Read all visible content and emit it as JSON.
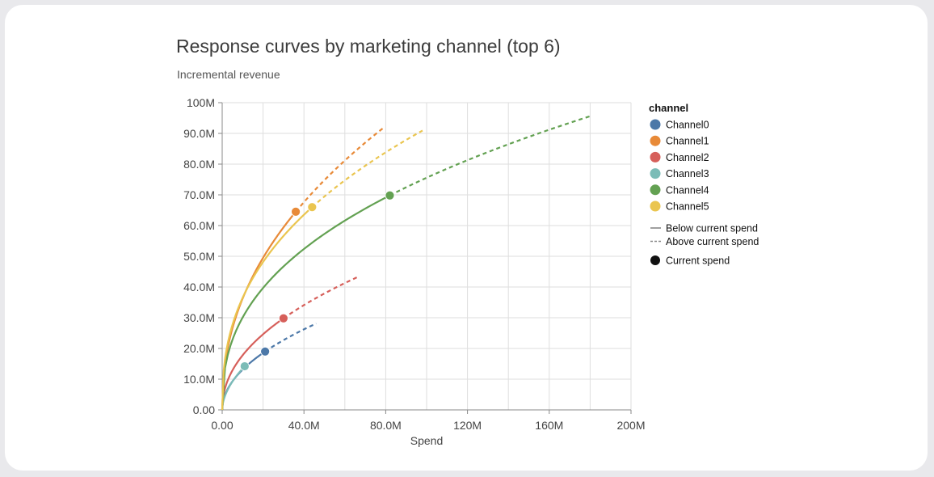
{
  "title": "Response curves by marketing channel (top 6)",
  "subtitle": "Incremental revenue",
  "chart_data": {
    "type": "line",
    "title": "Response curves by marketing channel (top 6)",
    "subtitle": "Incremental revenue",
    "xlabel": "Spend",
    "ylabel": "",
    "xlim": [
      0,
      200000000
    ],
    "ylim": [
      0,
      100000000
    ],
    "x_ticks": [
      {
        "value": 0,
        "label": "0.00"
      },
      {
        "value": 40000000,
        "label": "40.0M"
      },
      {
        "value": 80000000,
        "label": "80.0M"
      },
      {
        "value": 120000000,
        "label": "120M"
      },
      {
        "value": 160000000,
        "label": "160M"
      },
      {
        "value": 200000000,
        "label": "200M"
      }
    ],
    "y_ticks": [
      {
        "value": 0,
        "label": "0.00"
      },
      {
        "value": 10000000,
        "label": "10.0M"
      },
      {
        "value": 20000000,
        "label": "20.0M"
      },
      {
        "value": 30000000,
        "label": "30.0M"
      },
      {
        "value": 40000000,
        "label": "40.0M"
      },
      {
        "value": 50000000,
        "label": "50.0M"
      },
      {
        "value": 60000000,
        "label": "60.0M"
      },
      {
        "value": 70000000,
        "label": "70.0M"
      },
      {
        "value": 80000000,
        "label": "80.0M"
      },
      {
        "value": 90000000,
        "label": "90.0M"
      },
      {
        "value": 100000000,
        "label": "100M"
      }
    ],
    "x_grid_lines": [
      0,
      20000000,
      40000000,
      60000000,
      80000000,
      100000000,
      120000000,
      140000000,
      160000000,
      180000000,
      200000000
    ],
    "grid": true,
    "legend": {
      "title": "channel",
      "position": "right",
      "line_styles": [
        {
          "label": "Below current spend",
          "dash": false
        },
        {
          "label": "Above current spend",
          "dash": true
        }
      ],
      "marker_label": "Current spend"
    },
    "series": [
      {
        "name": "Channel0",
        "color": "#4c78a8",
        "current_spend": [
          21000000,
          19000000
        ],
        "max_spend": [
          46000000,
          27500000
        ],
        "exponent": 0.5
      },
      {
        "name": "Channel1",
        "color": "#e88a38",
        "current_spend": [
          36000000,
          64500000
        ],
        "max_spend": [
          79000000,
          88500000
        ],
        "exponent": 0.45
      },
      {
        "name": "Channel2",
        "color": "#d65f5a",
        "current_spend": [
          30000000,
          29800000
        ],
        "max_spend": [
          66000000,
          42000000
        ],
        "exponent": 0.47
      },
      {
        "name": "Channel3",
        "color": "#7bbcb7",
        "current_spend": [
          11000000,
          14200000
        ],
        "max_spend": [
          13000000,
          15500000
        ],
        "exponent": 0.55
      },
      {
        "name": "Channel4",
        "color": "#63a152",
        "current_spend": [
          82000000,
          69800000
        ],
        "max_spend": [
          180000000,
          95500000
        ],
        "exponent": 0.4
      },
      {
        "name": "Channel5",
        "color": "#eac54f",
        "current_spend": [
          44000000,
          66000000
        ],
        "max_spend": [
          98000000,
          90500000
        ],
        "exponent": 0.4
      }
    ]
  }
}
